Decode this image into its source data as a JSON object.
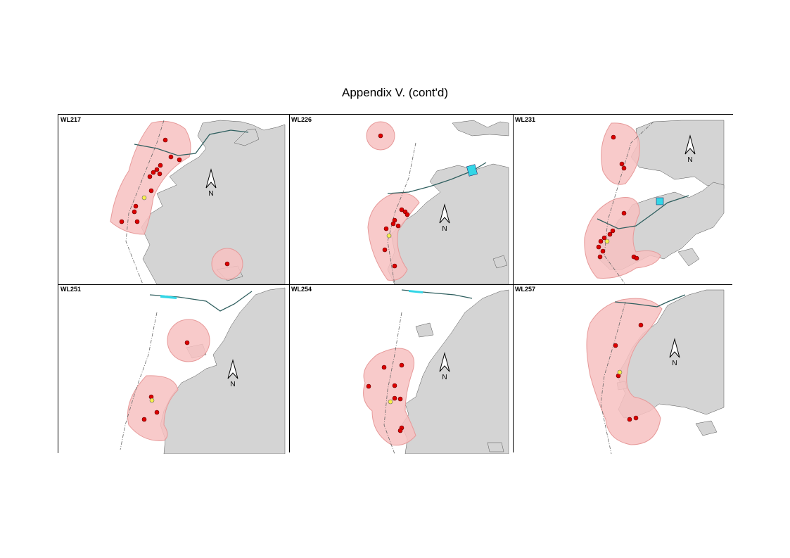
{
  "page": {
    "title": "Appendix V.  (cont'd)"
  },
  "colors": {
    "land": "#d4d4d4",
    "home_range": "#f7c1c1",
    "home_range_stroke": "#e79a9a",
    "sighting": "#dd0000",
    "sighting_highlight": "#f7f04a",
    "ferry_marker": "#33d6e6",
    "channel_line": "#2f5f5f"
  },
  "north_arrow_label": "N",
  "panels": [
    {
      "id": "WL217",
      "label": "WL217"
    },
    {
      "id": "WL226",
      "label": "WL226"
    },
    {
      "id": "WL231",
      "label": "WL231"
    },
    {
      "id": "WL251",
      "label": "WL251"
    },
    {
      "id": "WL254",
      "label": "WL254"
    },
    {
      "id": "WL257",
      "label": "WL257"
    }
  ]
}
